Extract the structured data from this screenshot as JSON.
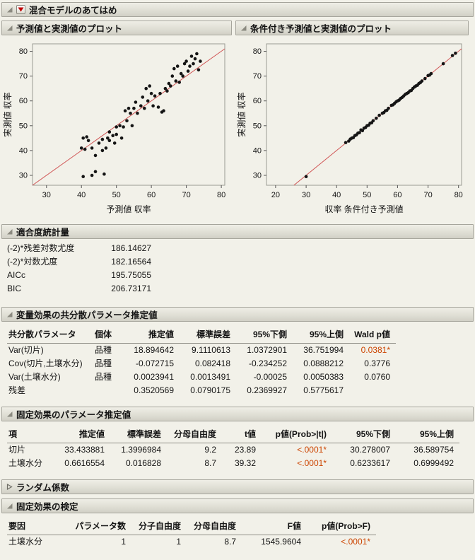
{
  "main": {
    "title": "混合モデルのあてはめ"
  },
  "chart_data": [
    {
      "type": "scatter",
      "title": "予測値と実測値のプロット",
      "xlabel": "予測値 収率",
      "ylabel": "実測値 収率",
      "xlim": [
        26,
        81
      ],
      "ylim": [
        26,
        83
      ],
      "x_ticks": [
        30,
        40,
        50,
        60,
        70,
        80
      ],
      "y_ticks": [
        30,
        40,
        50,
        60,
        70,
        80
      ],
      "diagonal_line": true,
      "line_color": "#d05555",
      "point_color": "#151515",
      "points": [
        [
          40.5,
          29.5
        ],
        [
          43,
          30
        ],
        [
          46.5,
          30.5
        ],
        [
          44,
          31.5
        ],
        [
          44,
          38
        ],
        [
          40,
          41
        ],
        [
          40.5,
          45
        ],
        [
          41.5,
          45.5
        ],
        [
          42,
          44
        ],
        [
          41,
          40.5
        ],
        [
          43,
          41
        ],
        [
          45,
          43
        ],
        [
          46,
          44.5
        ],
        [
          46,
          40
        ],
        [
          47,
          41
        ],
        [
          47.5,
          45
        ],
        [
          48,
          44
        ],
        [
          48,
          47.5
        ],
        [
          49,
          46
        ],
        [
          49.5,
          43
        ],
        [
          50,
          46.5
        ],
        [
          50,
          49.5
        ],
        [
          51,
          50
        ],
        [
          51.5,
          45
        ],
        [
          52,
          49.5
        ],
        [
          52.5,
          56
        ],
        [
          53,
          52
        ],
        [
          53.5,
          57
        ],
        [
          54,
          55
        ],
        [
          54.5,
          50
        ],
        [
          55,
          57
        ],
        [
          55.5,
          59.5
        ],
        [
          56,
          55
        ],
        [
          57,
          58
        ],
        [
          57.5,
          61.5
        ],
        [
          58,
          57
        ],
        [
          58.5,
          65
        ],
        [
          59,
          60
        ],
        [
          59.5,
          66
        ],
        [
          60,
          63
        ],
        [
          60.5,
          58
        ],
        [
          61,
          62
        ],
        [
          62,
          57.5
        ],
        [
          62.5,
          63
        ],
        [
          63,
          55.5
        ],
        [
          63.5,
          56
        ],
        [
          64,
          65
        ],
        [
          64.5,
          64
        ],
        [
          65,
          67
        ],
        [
          65.5,
          66
        ],
        [
          66,
          70
        ],
        [
          66.5,
          73
        ],
        [
          67,
          68
        ],
        [
          67.5,
          74
        ],
        [
          68,
          67.5
        ],
        [
          68.5,
          71
        ],
        [
          69,
          70
        ],
        [
          69.5,
          75
        ],
        [
          70,
          76
        ],
        [
          70.5,
          72
        ],
        [
          71,
          74
        ],
        [
          71.5,
          78
        ],
        [
          72,
          75
        ],
        [
          72.5,
          77
        ],
        [
          73,
          79
        ],
        [
          73.5,
          72.5
        ],
        [
          74,
          76
        ]
      ]
    },
    {
      "type": "scatter",
      "title": "条件付き予測値と実測値のプロット",
      "xlabel": "収率 条件付き予測値",
      "ylabel": "実測値 収率",
      "xlim": [
        17,
        81
      ],
      "ylim": [
        26,
        83
      ],
      "x_ticks": [
        20,
        30,
        40,
        50,
        60,
        70,
        80
      ],
      "y_ticks": [
        30,
        40,
        50,
        60,
        70,
        80
      ],
      "diagonal_line": true,
      "line_color": "#d05555",
      "point_color": "#151515",
      "points": [
        [
          30,
          29.5
        ],
        [
          43,
          43.2
        ],
        [
          44,
          43.8
        ],
        [
          44.5,
          44.6
        ],
        [
          45,
          45
        ],
        [
          45.5,
          45.2
        ],
        [
          46,
          46
        ],
        [
          46.5,
          46.3
        ],
        [
          47,
          47
        ],
        [
          47.5,
          47.2
        ],
        [
          48,
          48.3
        ],
        [
          48.5,
          48
        ],
        [
          49,
          49
        ],
        [
          49.5,
          49.3
        ],
        [
          50,
          50
        ],
        [
          50.5,
          50.2
        ],
        [
          51,
          51
        ],
        [
          51.5,
          51.2
        ],
        [
          52,
          52
        ],
        [
          53,
          53
        ],
        [
          54,
          54.2
        ],
        [
          55,
          55
        ],
        [
          55.5,
          55.3
        ],
        [
          56,
          56
        ],
        [
          56.5,
          56.2
        ],
        [
          57,
          57
        ],
        [
          58,
          58.2
        ],
        [
          58.5,
          58.4
        ],
        [
          59,
          59
        ],
        [
          59.5,
          59.6
        ],
        [
          60,
          60
        ],
        [
          60.5,
          60.3
        ],
        [
          61,
          61
        ],
        [
          61.5,
          61.4
        ],
        [
          62,
          62
        ],
        [
          62.5,
          62.6
        ],
        [
          63,
          63
        ],
        [
          63.5,
          63.3
        ],
        [
          64,
          64
        ],
        [
          64.5,
          64.2
        ],
        [
          65,
          65
        ],
        [
          65.5,
          65.6
        ],
        [
          66,
          66
        ],
        [
          66.5,
          66.3
        ],
        [
          67,
          67
        ],
        [
          67.5,
          67.4
        ],
        [
          68,
          68
        ],
        [
          69,
          69
        ],
        [
          70,
          70.2
        ],
        [
          70.5,
          70.4
        ],
        [
          71,
          71
        ],
        [
          75,
          75
        ],
        [
          78,
          78.3
        ],
        [
          79,
          79.2
        ]
      ]
    }
  ],
  "fit_stats": {
    "title": "適合度統計量",
    "rows": [
      {
        "label": "(-2)*残差対数尤度",
        "value": "186.14627"
      },
      {
        "label": "(-2)*対数尤度",
        "value": "182.16564"
      },
      {
        "label": "AICc",
        "value": "195.75055"
      },
      {
        "label": "BIC",
        "value": "206.73171"
      }
    ]
  },
  "cov_table": {
    "title": "変量効果の共分散パラメータ推定値",
    "headers": [
      "共分散パラメータ",
      "個体",
      "推定値",
      "標準誤差",
      "95%下側",
      "95%上側",
      "Wald p値"
    ],
    "rows": [
      [
        "Var(切片)",
        "品種",
        "18.894642",
        "9.1110613",
        "1.0372901",
        "36.751994",
        "0.0381*"
      ],
      [
        "Cov(切片,土壌水分)",
        "品種",
        "-0.072715",
        "0.082418",
        "-0.234252",
        "0.0888212",
        "0.3776"
      ],
      [
        "Var(土壌水分)",
        "品種",
        "0.0023941",
        "0.0013491",
        "-0.00025",
        "0.0050383",
        "0.0760"
      ],
      [
        "残差",
        "",
        "0.3520569",
        "0.0790175",
        "0.2369927",
        "0.5775617",
        ""
      ]
    ]
  },
  "fixed_table": {
    "title": "固定効果のパラメータ推定値",
    "headers": [
      "項",
      "推定値",
      "標準誤差",
      "分母自由度",
      "t値",
      "p値(Prob>|t|)",
      "95%下側",
      "95%上側"
    ],
    "rows": [
      [
        "切片",
        "33.433881",
        "1.3996984",
        "9.2",
        "23.89",
        "<.0001*",
        "30.278007",
        "36.589754"
      ],
      [
        "土壌水分",
        "0.6616554",
        "0.016828",
        "8.7",
        "39.32",
        "<.0001*",
        "0.6233617",
        "0.6999492"
      ]
    ]
  },
  "random_section": {
    "title": "ランダム係数"
  },
  "tests_table": {
    "title": "固定効果の検定",
    "headers": [
      "要因",
      "パラメータ数",
      "分子自由度",
      "分母自由度",
      "F値",
      "p値(Prob>F)"
    ],
    "rows": [
      [
        "土壌水分",
        "1",
        "1",
        "8.7",
        "1545.9604",
        "<.0001*"
      ]
    ]
  }
}
